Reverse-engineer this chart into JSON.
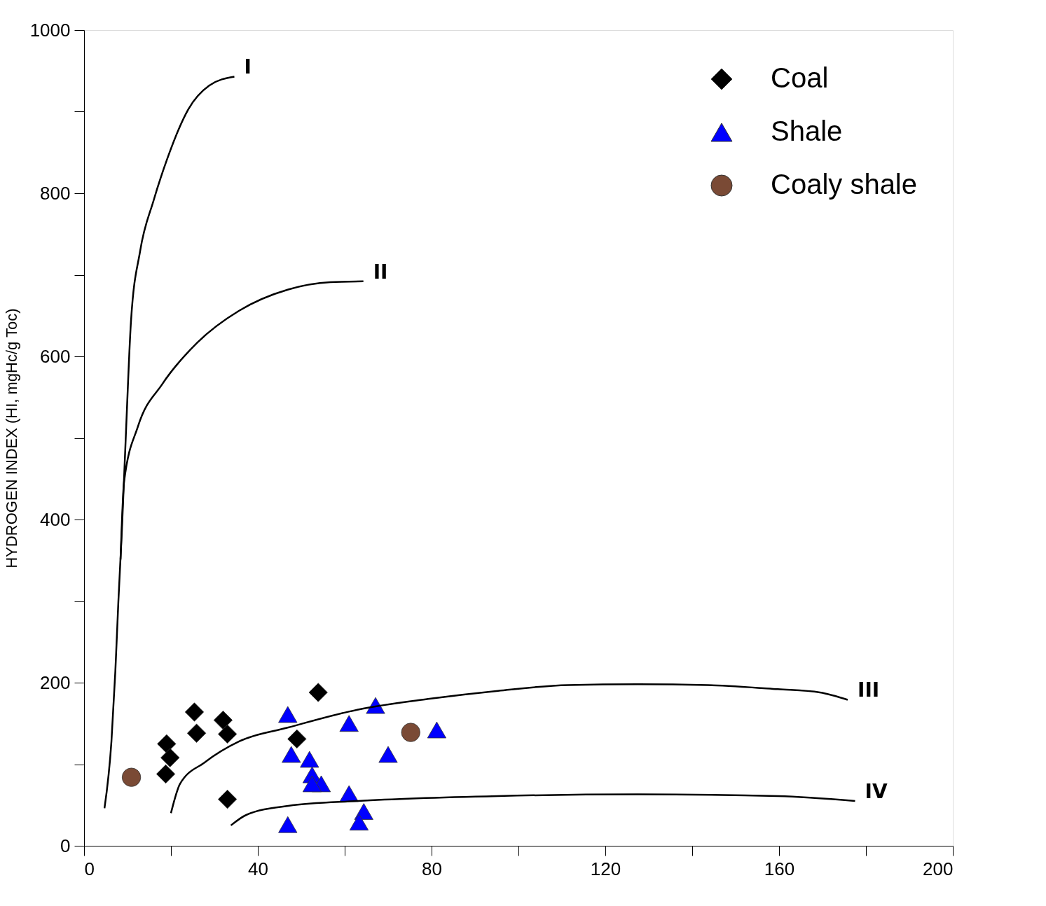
{
  "chart_data": {
    "type": "scatter",
    "ylabel": "HYDROGEN INDEX (HI, mgHc/g Toc)",
    "xlim": [
      0,
      200
    ],
    "ylim": [
      0,
      1000
    ],
    "xticks": [
      0,
      {
        "value": 20,
        "label": null
      },
      40,
      {
        "value": 60,
        "label": null
      },
      80,
      {
        "value": 100,
        "label": null
      },
      120,
      {
        "value": 140,
        "label": null
      },
      160,
      {
        "value": 180,
        "label": null
      },
      200
    ],
    "yticks": [
      0,
      {
        "value": 100,
        "label": null
      },
      200,
      {
        "value": 300,
        "label": null
      },
      400,
      {
        "value": 500,
        "label": null
      },
      600,
      {
        "value": 700,
        "label": null
      },
      800,
      {
        "value": 900,
        "label": null
      },
      1000
    ],
    "grid": false,
    "legend": "top right",
    "series": [
      {
        "name": "Coal",
        "marker": "diamond",
        "color": "#000000",
        "x": [
          25.4,
          25.9,
          32.0,
          33.0,
          19.0,
          19.8,
          18.8,
          33.0,
          53.9,
          49.0
        ],
        "values": [
          164,
          138,
          154,
          137,
          125,
          108,
          88,
          57,
          188,
          131
        ]
      },
      {
        "name": "Shale",
        "marker": "triangle",
        "color": "#0000ff",
        "x": [
          46.9,
          67.1,
          61.0,
          81.2,
          47.7,
          51.9,
          70.0,
          52.5,
          54.6,
          52.5,
          61.0,
          64.4,
          63.3,
          46.9
        ],
        "values": [
          161,
          172,
          150,
          142,
          112,
          106,
          112,
          87,
          76,
          76,
          64,
          42,
          29,
          26
        ]
      },
      {
        "name": "Coaly shale",
        "marker": "circle",
        "color": "#7a4a35",
        "x": [
          10.9,
          75.2
        ],
        "values": [
          84,
          139
        ]
      },
      {
        "name": "I",
        "type": "line",
        "color": "#000000",
        "x": [
          4.7,
          6.3,
          7.2,
          7.9,
          8.7,
          9.7,
          10.8,
          12.9,
          16.0,
          19.2,
          24.0,
          28.8,
          34.6
        ],
        "values": [
          46,
          128,
          214,
          300,
          386,
          514,
          643,
          729,
          791,
          843,
          903,
          932,
          943
        ]
      },
      {
        "name": "II",
        "type": "line",
        "color": "#000000",
        "x": [
          8.4,
          9.2,
          12.4,
          18.0,
          26.1,
          35.7,
          47.0,
          56.7,
          64.3
        ],
        "values": [
          351,
          446,
          514,
          566,
          617,
          656,
          682,
          691,
          692
        ]
      },
      {
        "name": "III",
        "type": "line",
        "color": "#000000",
        "x": [
          20.0,
          22.1,
          27.7,
          35.7,
          47.0,
          63.1,
          79.2,
          95.3,
          111.4,
          127.5,
          143.6,
          159.7,
          169.4,
          175.8
        ],
        "values": [
          40,
          76,
          102,
          128,
          145,
          167,
          180,
          190,
          197,
          198,
          197,
          192,
          188,
          179
        ]
      },
      {
        "name": "IV",
        "type": "line",
        "color": "#000000",
        "x": [
          33.8,
          37.4,
          47.0,
          63.1,
          95.3,
          127.5,
          159.7,
          177.5
        ],
        "values": [
          25,
          38,
          49,
          55,
          61,
          63,
          61,
          55
        ]
      }
    ]
  }
}
